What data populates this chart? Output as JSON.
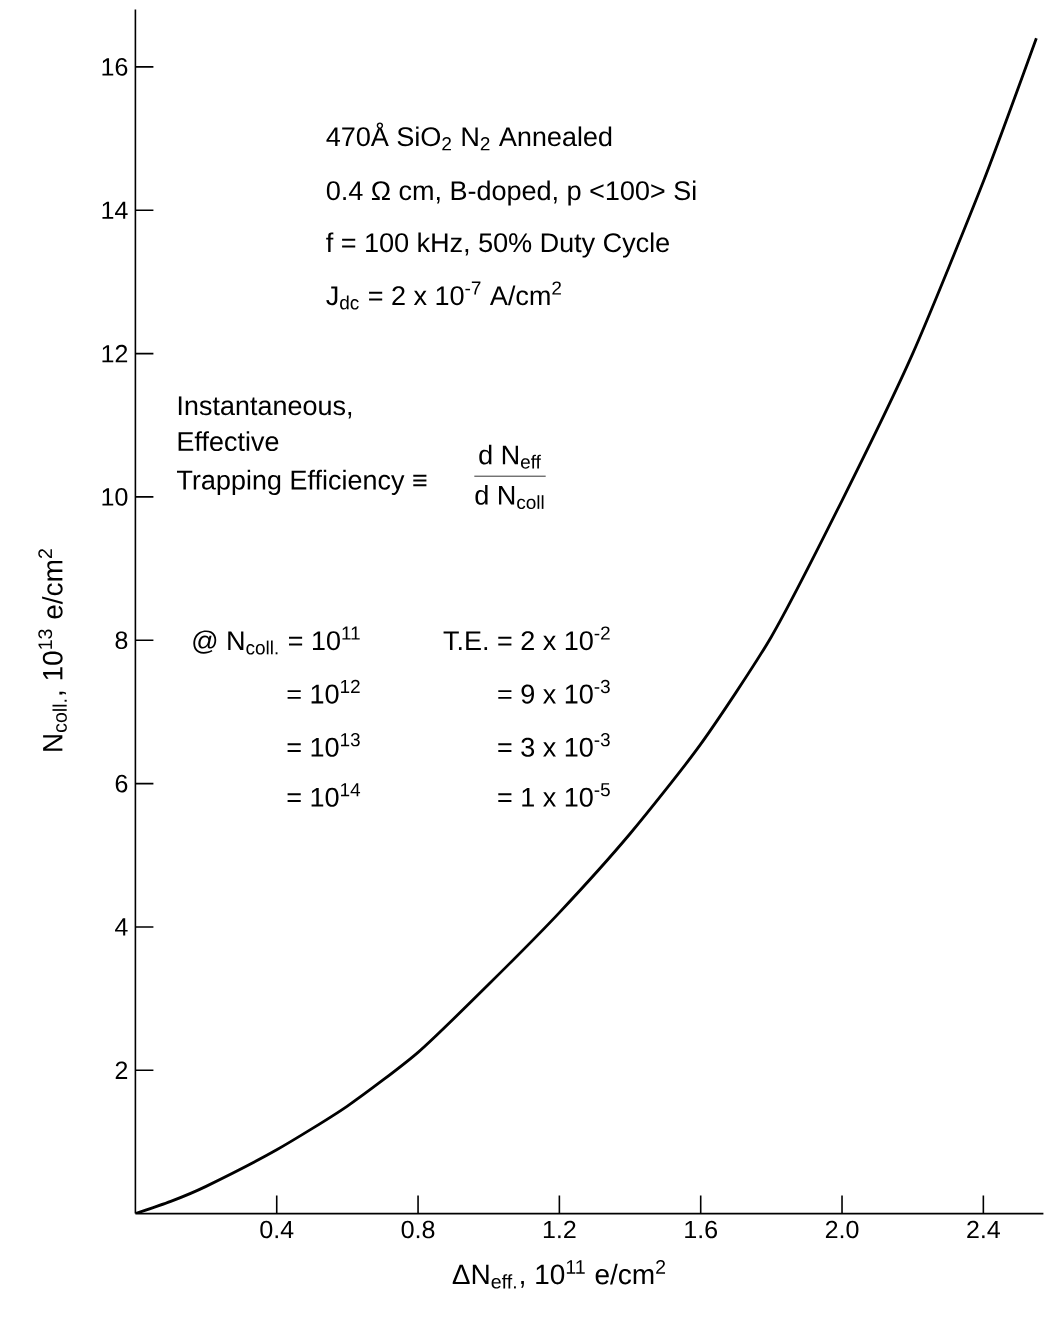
{
  "chart_data": {
    "type": "line",
    "xlabel": "ΔN$_{eff.}$, 10$^{11}$ e/cm$^{2}$",
    "ylabel": "N$_{coll.}$, 10$^{13}$ e/cm$^{2}$",
    "x": [
      0,
      0.1,
      0.2,
      0.4,
      0.6,
      0.8,
      1.0,
      1.2,
      1.4,
      1.6,
      1.8,
      2.0,
      2.2,
      2.4,
      2.55
    ],
    "values": [
      0,
      0.17,
      0.38,
      0.89,
      1.5,
      2.25,
      3.2,
      4.2,
      5.3,
      6.55,
      8.05,
      9.95,
      12.0,
      14.4,
      16.4
    ],
    "color": "#000000",
    "xlim": [
      0,
      2.57
    ],
    "ylim": [
      0,
      16.8
    ],
    "xticks": [
      0.4,
      0.8,
      1.2,
      1.6,
      {
        "value": 2,
        "label": "2.0"
      },
      2.4
    ],
    "yticks": [
      2,
      4,
      6,
      8,
      10,
      12,
      14,
      16
    ],
    "annotations": [
      "470Å SiO$_{2}$ N$_{2}$ Annealed",
      "0.4 Ω cm, B-doped, p <100> Si",
      "f = 100 kHz, 50% Duty Cycle",
      "J$_{dc}$ = 2 x 10$^{-7}$ A/cm$^{2}$",
      "Instantaneous,",
      "Effective",
      "Trapping Efficiency ≡",
      "d N$_{eff}$",
      "d N$_{coll}$",
      "@ N$_{coll.}$ = 10$^{11}$",
      "= 10$^{12}$",
      "= 10$^{13}$",
      "= 10$^{14}$",
      "T.E. = 2 x 10$^{-2}$",
      "= 9 x 10$^{-3}$",
      "= 3 x 10$^{-3}$",
      "= 1 x 10$^{-5}$"
    ]
  }
}
